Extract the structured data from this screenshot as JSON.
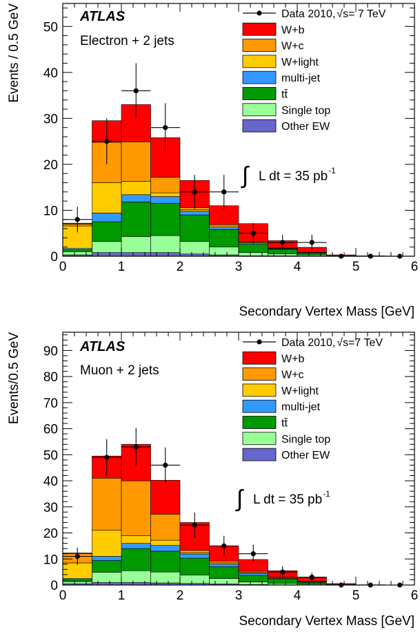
{
  "legend_labels": {
    "wb": "W+b",
    "wc": "W+c",
    "wlight": "W+light",
    "multijet": "multi-jet",
    "ttbar": "tt̄",
    "singletop": "Single top",
    "otherew": "Other EW"
  },
  "colors": {
    "wb": "#ff0000",
    "wc": "#ff9900",
    "wlight": "#ffcc00",
    "multijet": "#3399ff",
    "ttbar": "#009900",
    "singletop": "#99ff99",
    "otherew": "#6666cc",
    "data": "#000000"
  },
  "chart_data": [
    {
      "type": "bar",
      "stacked": true,
      "experiment": "ATLAS",
      "channel": "Electron + 2 jets",
      "data_label": "Data 2010,",
      "energy_label": "√s= 7 TeV",
      "lumi_label": "L dt = 35 pb",
      "lumi_exp": "-1",
      "integral_symbol": "∫",
      "xlabel": "Secondary Vertex Mass [GeV]",
      "ylabel": "Events / 0.5 GeV",
      "xlim": [
        0,
        6
      ],
      "ylim": [
        0,
        55
      ],
      "xticks": [
        0,
        1,
        2,
        3,
        4,
        5,
        6
      ],
      "yticks": [
        0,
        10,
        20,
        30,
        40,
        50
      ],
      "bin_edges": [
        0,
        0.5,
        1.0,
        1.5,
        2.0,
        2.5,
        3.0,
        3.5,
        4.0,
        4.5,
        5.0,
        5.5,
        6.0
      ],
      "series": [
        {
          "key": "otherew",
          "values": [
            0.3,
            0.8,
            0.8,
            0.8,
            0.5,
            0.3,
            0.1,
            0.1,
            0.05,
            0.0,
            0.0,
            0.0
          ]
        },
        {
          "key": "singletop",
          "values": [
            0.7,
            2.4,
            3.5,
            3.7,
            2.7,
            1.7,
            0.7,
            0.4,
            0.25,
            0.05,
            0.0,
            0.0
          ]
        },
        {
          "key": "ttbar",
          "values": [
            0.4,
            4.3,
            7.5,
            7.0,
            5.8,
            3.8,
            1.8,
            0.9,
            0.4,
            0.05,
            0.0,
            0.0
          ]
        },
        {
          "key": "multijet",
          "values": [
            0.3,
            1.9,
            1.6,
            1.5,
            0.8,
            0.4,
            0.3,
            0.2,
            0.1,
            0.0,
            0.0,
            0.0
          ]
        },
        {
          "key": "wlight",
          "values": [
            4.9,
            6.6,
            2.9,
            0.8,
            0.3,
            0.3,
            0.1,
            0.1,
            0.0,
            0.0,
            0.0,
            0.0
          ]
        },
        {
          "key": "wc",
          "values": [
            0.4,
            8.8,
            8.6,
            3.4,
            0.5,
            0.4,
            0.2,
            0.1,
            0.05,
            0.0,
            0.0,
            0.0
          ]
        },
        {
          "key": "wb",
          "values": [
            0.2,
            4.7,
            8.1,
            8.6,
            5.9,
            4.1,
            3.9,
            1.6,
            1.1,
            0.2,
            0.1,
            0.05
          ]
        }
      ],
      "data_points": {
        "x": [
          0.25,
          0.75,
          1.25,
          1.75,
          2.25,
          2.75,
          3.25,
          3.75,
          4.25,
          4.75,
          5.25,
          5.75
        ],
        "y": [
          8,
          25,
          36,
          28,
          14,
          14,
          5,
          3,
          3,
          0,
          0,
          0
        ],
        "err": [
          2.8,
          5.0,
          6.0,
          5.3,
          3.7,
          3.7,
          2.2,
          1.7,
          1.7,
          0,
          0,
          0
        ]
      }
    },
    {
      "type": "bar",
      "stacked": true,
      "experiment": "ATLAS",
      "channel": "Muon + 2 jets",
      "data_label": "Data 2010,",
      "energy_label": "√s=7 TeV",
      "lumi_label": "L dt = 35 pb",
      "lumi_exp": "-1",
      "integral_symbol": "∫",
      "xlabel": "Secondary Vertex Mass [GeV]",
      "ylabel": "Events/0.5 GeV",
      "xlim": [
        0,
        6
      ],
      "ylim": [
        0,
        97
      ],
      "xticks": [
        0,
        1,
        2,
        3,
        4,
        5,
        6
      ],
      "yticks": [
        0,
        10,
        20,
        30,
        40,
        50,
        60,
        70,
        80,
        90
      ],
      "bin_edges": [
        0,
        0.5,
        1.0,
        1.5,
        2.0,
        2.5,
        3.0,
        3.5,
        4.0,
        4.5,
        5.0,
        5.5,
        6.0
      ],
      "series": [
        {
          "key": "otherew",
          "values": [
            0.5,
            1.0,
            1.0,
            0.8,
            0.6,
            0.4,
            0.2,
            0.1,
            0.05,
            0.0,
            0.0,
            0.0
          ]
        },
        {
          "key": "singletop",
          "values": [
            0.8,
            3.9,
            4.5,
            4.2,
            3.2,
            2.1,
            1.0,
            0.6,
            0.3,
            0.1,
            0.0,
            0.0
          ]
        },
        {
          "key": "ttbar",
          "values": [
            0.7,
            4.5,
            8.5,
            8.0,
            6.5,
            4.5,
            2.5,
            1.5,
            0.7,
            0.1,
            0.0,
            0.0
          ]
        },
        {
          "key": "multijet",
          "values": [
            0.5,
            1.6,
            2.0,
            2.2,
            1.6,
            1.0,
            0.8,
            0.3,
            0.2,
            0.05,
            0.0,
            0.0
          ]
        },
        {
          "key": "wlight",
          "values": [
            6.0,
            10.0,
            3.0,
            2.0,
            0.4,
            0.5,
            0.3,
            0.2,
            0.1,
            0.0,
            0.0,
            0.0
          ]
        },
        {
          "key": "wc",
          "values": [
            3.5,
            20.0,
            21.0,
            10.0,
            1.0,
            0.7,
            0.5,
            0.3,
            0.1,
            0.0,
            0.0,
            0.0
          ]
        },
        {
          "key": "wb",
          "values": [
            0.3,
            8.5,
            14.0,
            13.0,
            10.7,
            5.8,
            4.5,
            2.5,
            1.6,
            0.3,
            0.1,
            0.05
          ]
        }
      ],
      "data_points": {
        "x": [
          0.25,
          0.75,
          1.25,
          1.75,
          2.25,
          2.75,
          3.25,
          3.75,
          4.25,
          4.75,
          5.25,
          5.75
        ],
        "y": [
          11,
          49,
          53,
          46,
          23,
          15,
          12,
          5,
          3,
          0,
          0,
          0
        ],
        "err": [
          3.3,
          7.0,
          7.3,
          6.8,
          4.8,
          3.9,
          3.5,
          2.2,
          1.7,
          0,
          0,
          0
        ]
      }
    }
  ]
}
